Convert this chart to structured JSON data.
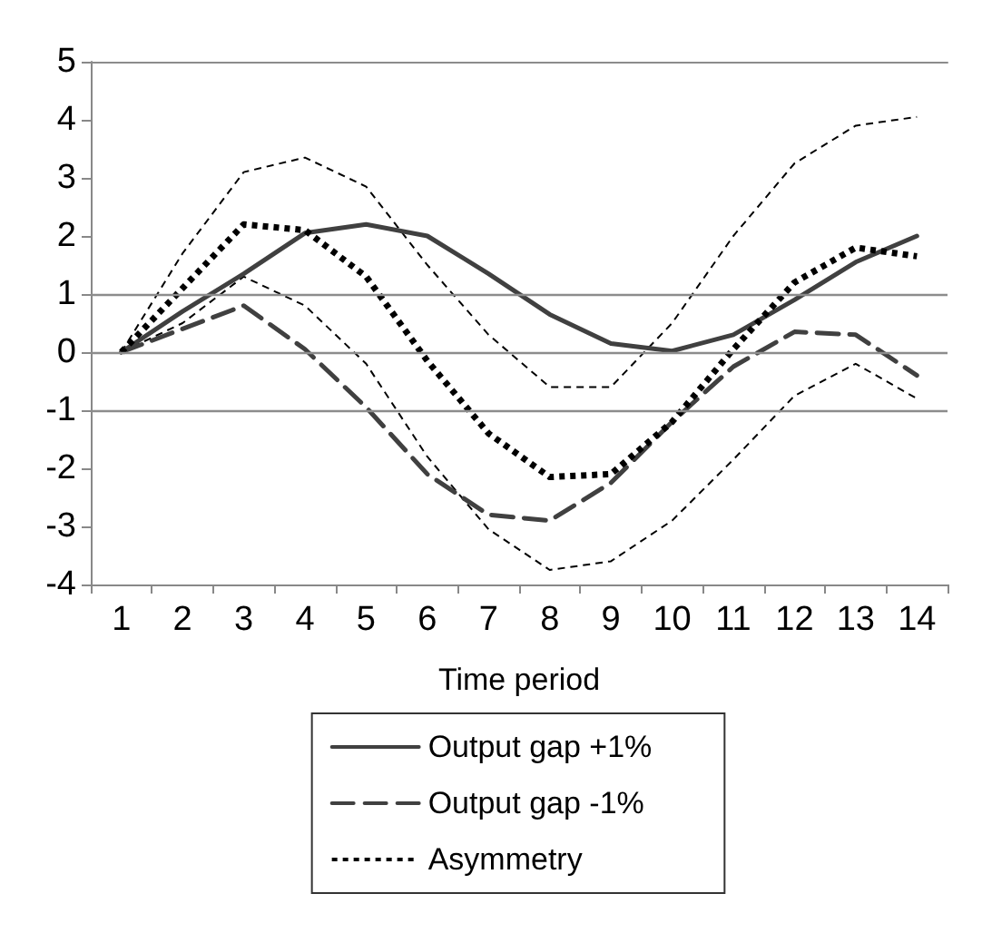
{
  "chart_data": {
    "type": "line",
    "xlabel": "Time period",
    "categories": [
      "1",
      "2",
      "3",
      "4",
      "5",
      "6",
      "7",
      "8",
      "9",
      "10",
      "11",
      "12",
      "13",
      "14"
    ],
    "series": [
      {
        "name": "Output gap +1%",
        "color": "#404040",
        "line_style": "solid",
        "values": [
          0,
          0.7,
          1.35,
          2.05,
          2.2,
          2.0,
          1.35,
          0.65,
          0.15,
          0.02,
          0.3,
          0.9,
          1.55,
          2.0
        ]
      },
      {
        "name": "Output gap -1%",
        "color": "#404040",
        "line_style": "dashed",
        "values": [
          0,
          0.4,
          0.8,
          0.05,
          -0.95,
          -2.1,
          -2.8,
          -2.9,
          -2.25,
          -1.2,
          -0.25,
          0.35,
          0.3,
          -0.4
        ]
      },
      {
        "name": "Asymmetry",
        "color": "#000000",
        "line_style": "dotted",
        "values": [
          0,
          1.1,
          2.2,
          2.1,
          1.3,
          -0.15,
          -1.4,
          -2.15,
          -2.1,
          -1.2,
          0.05,
          1.2,
          1.8,
          1.65
        ]
      },
      {
        "color": "#000000",
        "line_style": "dashed",
        "values": [
          0,
          0.5,
          1.3,
          0.8,
          -0.2,
          -1.8,
          -3.05,
          -3.75,
          -3.6,
          -2.9,
          -1.85,
          -0.75,
          -0.2,
          -0.8
        ]
      },
      {
        "color": "#000000",
        "line_style": "dashed",
        "values": [
          0,
          1.7,
          3.1,
          3.35,
          2.85,
          1.5,
          0.3,
          -0.6,
          -0.6,
          0.5,
          2.0,
          3.25,
          3.9,
          4.05
        ]
      }
    ],
    "ylim": [
      -4,
      5
    ],
    "yticks": [
      -4,
      -3,
      -2,
      -1,
      0,
      1,
      2,
      3,
      4,
      5
    ],
    "ref_lines": [
      {
        "axis": "y",
        "value": 1
      },
      {
        "axis": "y",
        "value": 0
      },
      {
        "axis": "y",
        "value": -1
      }
    ],
    "grid": false,
    "legend": "bottom",
    "marker": "none"
  }
}
